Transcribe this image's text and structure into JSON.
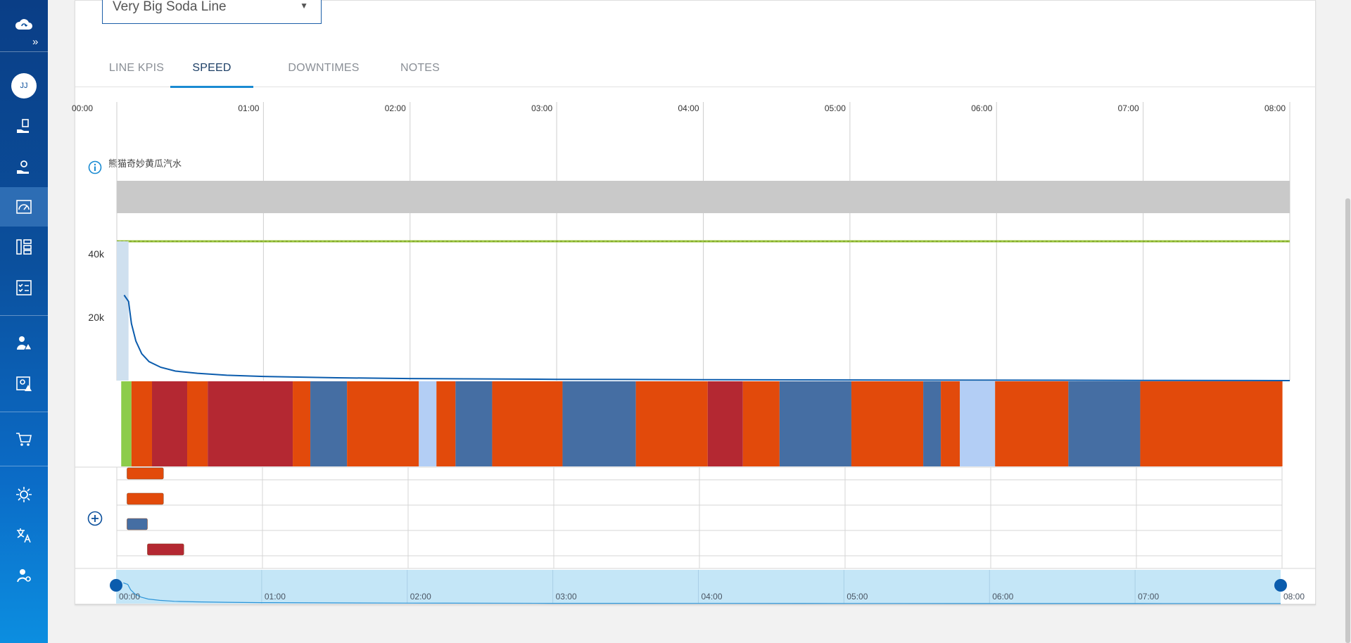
{
  "line_selector": {
    "value": "Very Big Soda Line"
  },
  "user": {
    "initials": "JJ"
  },
  "tabs": [
    {
      "label": "LINE KPIS",
      "active": false
    },
    {
      "label": "SPEED",
      "active": true
    },
    {
      "label": "DOWNTIMES",
      "active": false
    },
    {
      "label": "NOTES",
      "active": false
    }
  ],
  "sidebar_icons": [
    "cloud-sync-icon",
    "hand-money-icon",
    "hand-settings-icon",
    "speedometer-icon",
    "hierarchy-icon",
    "checklist-icon",
    "person-alert-icon",
    "image-alert-icon",
    "cart-icon",
    "brightness-icon",
    "translate-icon",
    "user-settings-icon"
  ],
  "product_label": "熊猫奇妙黄瓜汽水",
  "colors": {
    "accent": "#1a8bd2",
    "speed_line": "#0b5cad",
    "target_line": "#9bc53d",
    "product_band": "#c9c9c9",
    "running": "#8ccc4a",
    "stop_orange": "#e24a0b",
    "stop_red": "#b42832",
    "stop_blue": "#456ea3",
    "stop_lightblue": "#b3cef5",
    "navigator_fill": "#c4e6f7"
  },
  "chart_data": {
    "type": "line",
    "x_unit": "hours",
    "x_ticks": [
      "00:00",
      "01:00",
      "02:00",
      "03:00",
      "04:00",
      "05:00",
      "06:00",
      "07:00",
      "08:00"
    ],
    "y_ticks": [
      {
        "value": 20000,
        "label": "20k"
      },
      {
        "value": 40000,
        "label": "40k"
      }
    ],
    "ylim": [
      0,
      44000
    ],
    "xlim": [
      0,
      8
    ],
    "target_speed": 44000,
    "speed_series": {
      "x": [
        0.05,
        0.08,
        0.1,
        0.13,
        0.17,
        0.22,
        0.3,
        0.4,
        0.55,
        0.75,
        1.0,
        1.5,
        2.0,
        3.0,
        4.0,
        5.0,
        6.0,
        7.0,
        8.0
      ],
      "y": [
        27000,
        25000,
        18000,
        12500,
        8500,
        6000,
        4200,
        3000,
        2300,
        1700,
        1300,
        900,
        650,
        400,
        280,
        200,
        130,
        70,
        0
      ]
    },
    "state_segments": [
      {
        "start": 0.03,
        "end": 0.1,
        "state": "running"
      },
      {
        "start": 0.1,
        "end": 0.24,
        "state": "stop_orange"
      },
      {
        "start": 0.24,
        "end": 0.48,
        "state": "stop_red"
      },
      {
        "start": 0.48,
        "end": 0.62,
        "state": "stop_orange"
      },
      {
        "start": 0.62,
        "end": 1.2,
        "state": "stop_red"
      },
      {
        "start": 1.2,
        "end": 1.32,
        "state": "stop_orange"
      },
      {
        "start": 1.32,
        "end": 1.57,
        "state": "stop_blue"
      },
      {
        "start": 1.57,
        "end": 2.06,
        "state": "stop_orange"
      },
      {
        "start": 2.06,
        "end": 2.18,
        "state": "stop_lightblue"
      },
      {
        "start": 2.18,
        "end": 2.31,
        "state": "stop_orange"
      },
      {
        "start": 2.31,
        "end": 2.56,
        "state": "stop_blue"
      },
      {
        "start": 2.56,
        "end": 3.04,
        "state": "stop_orange"
      },
      {
        "start": 3.04,
        "end": 3.54,
        "state": "stop_blue"
      },
      {
        "start": 3.54,
        "end": 4.03,
        "state": "stop_orange"
      },
      {
        "start": 4.03,
        "end": 4.27,
        "state": "stop_red"
      },
      {
        "start": 4.27,
        "end": 4.52,
        "state": "stop_orange"
      },
      {
        "start": 4.52,
        "end": 5.01,
        "state": "stop_blue"
      },
      {
        "start": 5.01,
        "end": 5.5,
        "state": "stop_orange"
      },
      {
        "start": 5.5,
        "end": 5.62,
        "state": "stop_blue"
      },
      {
        "start": 5.62,
        "end": 5.75,
        "state": "stop_orange"
      },
      {
        "start": 5.75,
        "end": 5.99,
        "state": "stop_lightblue"
      },
      {
        "start": 5.99,
        "end": 6.49,
        "state": "stop_orange"
      },
      {
        "start": 6.49,
        "end": 6.98,
        "state": "stop_blue"
      },
      {
        "start": 6.98,
        "end": 7.95,
        "state": "stop_orange"
      }
    ],
    "detail_rows": [
      {
        "start": 0.07,
        "end": 0.32,
        "state": "stop_orange"
      },
      {
        "start": 0.07,
        "end": 0.32,
        "state": "stop_orange"
      },
      {
        "start": 0.07,
        "end": 0.21,
        "state": "stop_blue"
      },
      {
        "start": 0.21,
        "end": 0.46,
        "state": "stop_red"
      }
    ],
    "navigator": {
      "x_ticks": [
        "00:00",
        "01:00",
        "02:00",
        "03:00",
        "04:00",
        "05:00",
        "06:00",
        "07:00",
        "08:00"
      ],
      "range": [
        0,
        8
      ]
    }
  }
}
